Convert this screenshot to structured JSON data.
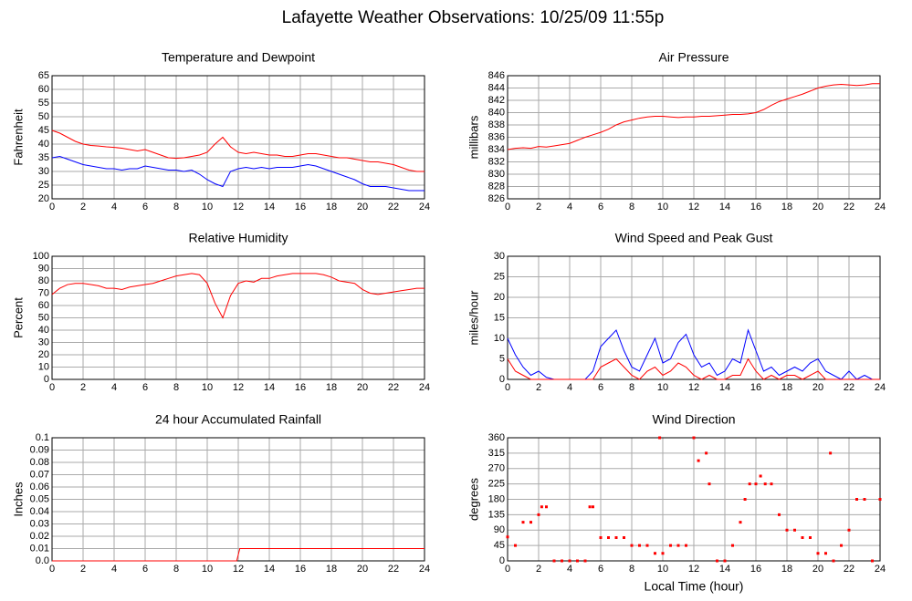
{
  "title": "Lafayette Weather Observations: 10/25/09 11:55p",
  "chart_data": [
    {
      "type": "line",
      "title": "Temperature and Dewpoint",
      "ylabel": "Fahrenheit",
      "grid": true,
      "xlim": [
        0,
        24
      ],
      "xticks": [
        0,
        2,
        4,
        6,
        8,
        10,
        12,
        14,
        16,
        18,
        20,
        22,
        24
      ],
      "ylim": [
        20,
        65
      ],
      "yticks": [
        20,
        25,
        30,
        35,
        40,
        45,
        50,
        55,
        60,
        65
      ],
      "x": [
        0,
        0.5,
        1,
        1.5,
        2,
        2.5,
        3,
        3.5,
        4,
        4.5,
        5,
        5.5,
        6,
        6.5,
        7,
        7.5,
        8,
        8.5,
        9,
        9.5,
        10,
        10.5,
        11,
        11.5,
        12,
        12.5,
        13,
        13.5,
        14,
        14.5,
        15,
        15.5,
        16,
        16.5,
        17,
        17.5,
        18,
        18.5,
        19,
        19.5,
        20,
        20.5,
        21,
        21.5,
        22,
        22.5,
        23,
        23.5,
        24
      ],
      "series": [
        {
          "color": "#ff0000",
          "values": [
            45,
            44,
            42.5,
            41,
            40,
            39.5,
            39.3,
            39,
            38.8,
            38.5,
            38,
            37.5,
            38,
            37,
            36,
            35,
            34.8,
            35,
            35.5,
            36,
            37,
            40,
            42.5,
            39,
            37,
            36.5,
            37,
            36.5,
            36,
            36,
            35.5,
            35.5,
            36,
            36.5,
            36.5,
            36,
            35.5,
            35,
            35,
            34.5,
            34,
            33.5,
            33.5,
            33,
            32.5,
            31.5,
            30.5,
            30,
            30
          ]
        },
        {
          "color": "#0000ff",
          "values": [
            35,
            35.5,
            34.5,
            33.5,
            32.5,
            32,
            31.5,
            31,
            31,
            30.5,
            31,
            31,
            32,
            31.5,
            31,
            30.5,
            30.5,
            30,
            30.5,
            29,
            27,
            25.5,
            24.5,
            30,
            31,
            31.5,
            31,
            31.5,
            31,
            31.5,
            31.5,
            31.5,
            32,
            32.5,
            32,
            31,
            30,
            29,
            28,
            27,
            25.5,
            24.5,
            24.5,
            24.5,
            24,
            23.5,
            23,
            23,
            23
          ]
        }
      ]
    },
    {
      "type": "line",
      "title": "Air Pressure",
      "ylabel": "millibars",
      "grid": true,
      "xlim": [
        0,
        24
      ],
      "xticks": [
        0,
        2,
        4,
        6,
        8,
        10,
        12,
        14,
        16,
        18,
        20,
        22,
        24
      ],
      "ylim": [
        826,
        846
      ],
      "yticks": [
        826,
        828,
        830,
        832,
        834,
        836,
        838,
        840,
        842,
        844,
        846
      ],
      "x": [
        0,
        0.5,
        1,
        1.5,
        2,
        2.5,
        3,
        3.5,
        4,
        4.5,
        5,
        5.5,
        6,
        6.5,
        7,
        7.5,
        8,
        8.5,
        9,
        9.5,
        10,
        10.5,
        11,
        11.5,
        12,
        12.5,
        13,
        13.5,
        14,
        14.5,
        15,
        15.5,
        16,
        16.5,
        17,
        17.5,
        18,
        18.5,
        19,
        19.5,
        20,
        20.5,
        21,
        21.5,
        22,
        22.5,
        23,
        23.5,
        24
      ],
      "series": [
        {
          "color": "#ff0000",
          "values": [
            834,
            834.2,
            834.3,
            834.2,
            834.5,
            834.4,
            834.6,
            834.8,
            835,
            835.5,
            836,
            836.4,
            836.8,
            837.3,
            838,
            838.5,
            838.8,
            839.1,
            839.3,
            839.4,
            839.4,
            839.3,
            839.2,
            839.3,
            839.3,
            839.4,
            839.4,
            839.5,
            839.6,
            839.7,
            839.7,
            839.8,
            840,
            840.5,
            841.2,
            841.8,
            842.2,
            842.6,
            843,
            843.5,
            844,
            844.3,
            844.5,
            844.6,
            844.5,
            844.4,
            844.5,
            844.7,
            844.7
          ]
        }
      ]
    },
    {
      "type": "line",
      "title": "Relative Humidity",
      "ylabel": "Percent",
      "grid": true,
      "xlim": [
        0,
        24
      ],
      "xticks": [
        0,
        2,
        4,
        6,
        8,
        10,
        12,
        14,
        16,
        18,
        20,
        22,
        24
      ],
      "ylim": [
        0,
        100
      ],
      "yticks": [
        0,
        10,
        20,
        30,
        40,
        50,
        60,
        70,
        80,
        90,
        100
      ],
      "x": [
        0,
        0.5,
        1,
        1.5,
        2,
        2.5,
        3,
        3.5,
        4,
        4.5,
        5,
        5.5,
        6,
        6.5,
        7,
        7.5,
        8,
        8.5,
        9,
        9.5,
        10,
        10.5,
        11,
        11.5,
        12,
        12.5,
        13,
        13.5,
        14,
        14.5,
        15,
        15.5,
        16,
        16.5,
        17,
        17.5,
        18,
        18.5,
        19,
        19.5,
        20,
        20.5,
        21,
        21.5,
        22,
        22.5,
        23,
        23.5,
        24
      ],
      "series": [
        {
          "color": "#ff0000",
          "values": [
            69,
            74,
            77,
            78,
            78,
            77,
            76,
            74,
            74,
            73,
            75,
            76,
            77,
            78,
            80,
            82,
            84,
            85,
            86,
            85,
            78,
            62,
            50,
            68,
            78,
            80,
            79,
            82,
            82,
            84,
            85,
            86,
            86,
            86,
            86,
            85,
            83,
            80,
            79,
            78,
            73,
            70,
            69,
            70,
            71,
            72,
            73,
            74,
            74
          ]
        }
      ]
    },
    {
      "type": "line",
      "title": "Wind Speed and Peak Gust",
      "ylabel": "miles/hour",
      "grid": true,
      "xlim": [
        0,
        24
      ],
      "xticks": [
        0,
        2,
        4,
        6,
        8,
        10,
        12,
        14,
        16,
        18,
        20,
        22,
        24
      ],
      "ylim": [
        0,
        30
      ],
      "yticks": [
        0,
        5,
        10,
        15,
        20,
        25,
        30
      ],
      "x": [
        0,
        0.5,
        1,
        1.5,
        2,
        2.5,
        3,
        3.5,
        4,
        4.5,
        5,
        5.5,
        6,
        6.5,
        7,
        7.5,
        8,
        8.5,
        9,
        9.5,
        10,
        10.5,
        11,
        11.5,
        12,
        12.5,
        13,
        13.5,
        14,
        14.5,
        15,
        15.5,
        16,
        16.5,
        17,
        17.5,
        18,
        18.5,
        19,
        19.5,
        20,
        20.5,
        21,
        21.5,
        22,
        22.5,
        23,
        23.5,
        24
      ],
      "series": [
        {
          "color": "#0000ff",
          "values": [
            10,
            6,
            3,
            1,
            2,
            0.5,
            0,
            0,
            0,
            0,
            0,
            2,
            8,
            10,
            12,
            7,
            3,
            2,
            6,
            10,
            4,
            5,
            9,
            11,
            6,
            3,
            4,
            1,
            2,
            5,
            4,
            12,
            7,
            2,
            3,
            1,
            2,
            3,
            2,
            4,
            5,
            2,
            1,
            0,
            2,
            0,
            1,
            0,
            0
          ]
        },
        {
          "color": "#ff0000",
          "values": [
            5,
            2,
            1,
            0,
            0,
            0,
            0,
            0,
            0,
            0,
            0,
            0,
            3,
            4,
            5,
            3,
            1,
            0,
            2,
            3,
            1,
            2,
            4,
            3,
            1,
            0,
            1,
            0,
            0,
            1,
            1,
            5,
            2,
            0,
            1,
            0,
            1,
            1,
            0,
            1,
            2,
            0,
            0,
            0,
            0,
            0,
            0,
            0,
            0
          ]
        }
      ]
    },
    {
      "type": "line",
      "title": "24 hour Accumulated Rainfall",
      "ylabel": "Inches",
      "grid": true,
      "xlim": [
        0,
        24
      ],
      "xticks": [
        0,
        2,
        4,
        6,
        8,
        10,
        12,
        14,
        16,
        18,
        20,
        22,
        24
      ],
      "ylim": [
        0,
        0.1
      ],
      "yticks": [
        {
          "value": 0,
          "label": "0.0"
        },
        0.01,
        0.02,
        0.03,
        0.04,
        0.05,
        0.06,
        0.07,
        0.08,
        0.09,
        0.1
      ],
      "x": [
        0,
        11.9,
        12.1,
        24
      ],
      "series": [
        {
          "color": "#ff0000",
          "values": [
            0,
            0,
            0.01,
            0.01
          ]
        }
      ]
    },
    {
      "type": "scatter",
      "title": "Wind Direction",
      "ylabel": "degrees",
      "xlabel": "Local Time (hour)",
      "grid": true,
      "xlim": [
        0,
        24
      ],
      "xticks": [
        0,
        2,
        4,
        6,
        8,
        10,
        12,
        14,
        16,
        18,
        20,
        22,
        24
      ],
      "ylim": [
        0,
        360
      ],
      "yticks": [
        0,
        45,
        90,
        135,
        180,
        225,
        270,
        315,
        360
      ],
      "x": [
        0,
        0.5,
        1,
        1.5,
        2,
        2.2,
        2.5,
        3,
        3.5,
        4,
        4.5,
        5,
        5.3,
        5.5,
        6,
        6.5,
        7,
        7.5,
        8,
        8.5,
        9,
        9.5,
        9.8,
        10,
        10.5,
        11,
        11.5,
        12,
        12.3,
        12.8,
        13,
        13.5,
        14,
        14.5,
        15,
        15.3,
        15.6,
        16,
        16.3,
        16.6,
        17,
        17.5,
        18,
        18.5,
        19,
        19.5,
        20,
        20.5,
        20.8,
        21,
        21.5,
        22,
        22.5,
        23,
        23.5,
        24
      ],
      "series": [
        {
          "color": "#ff0000",
          "values": [
            70,
            45,
            113,
            113,
            135,
            158,
            158,
            0,
            0,
            0,
            0,
            0,
            158,
            158,
            68,
            68,
            68,
            68,
            45,
            45,
            45,
            22,
            360,
            22,
            45,
            45,
            45,
            360,
            293,
            315,
            225,
            0,
            0,
            45,
            113,
            180,
            225,
            225,
            248,
            225,
            225,
            135,
            90,
            90,
            68,
            68,
            22,
            22,
            315,
            0,
            45,
            90,
            180,
            180,
            0,
            180
          ]
        }
      ]
    }
  ]
}
